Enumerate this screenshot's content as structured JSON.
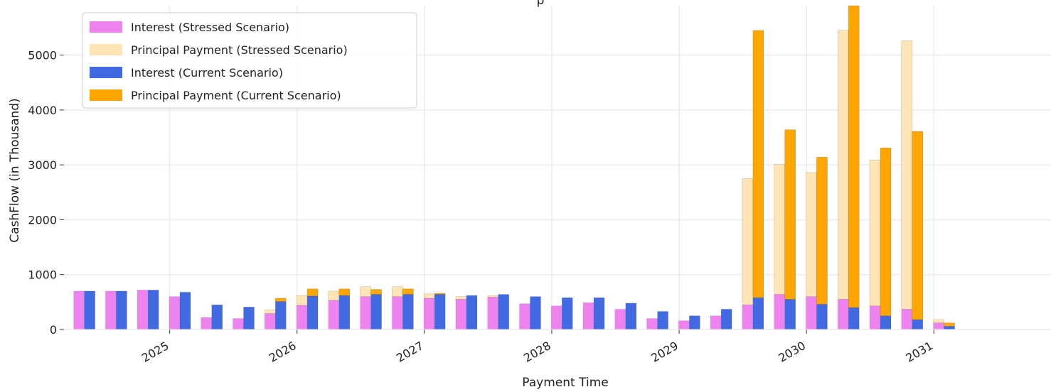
{
  "chart_data": {
    "type": "bar",
    "title": "p",
    "xlabel": "Payment Time",
    "ylabel": "CashFlow (in Thousand)",
    "ylim": [
      0,
      5900
    ],
    "y_ticks": [
      0,
      1000,
      2000,
      3000,
      4000,
      5000
    ],
    "y_tick_labels": [
      "0",
      "1000",
      "2000",
      "3000",
      "4000",
      "5000"
    ],
    "x_ticks": [
      2025,
      2026,
      2027,
      2028,
      2029,
      2030,
      2031
    ],
    "x_tick_labels": [
      "2025",
      "2026",
      "2027",
      "2028",
      "2029",
      "2030",
      "2031"
    ],
    "x_range": [
      2024.17,
      2031.92
    ],
    "grid": true,
    "legend_position": "top-left",
    "colors": {
      "interest_stressed": "#ee82ee",
      "principal_stressed": "#ffe4b5",
      "interest_current": "#4169e1",
      "principal_current": "#ffa500"
    },
    "groups": [
      {
        "name": "Stressed Scenario",
        "interest": "Interest (Stressed Scenario)",
        "principal": "Principal Payment (Stressed Scenario)"
      },
      {
        "name": "Current Scenario",
        "interest": "Interest (Current Scenario)",
        "principal": "Principal Payment (Current Scenario)"
      }
    ],
    "legend": [
      {
        "label": "Interest (Stressed Scenario)",
        "color": "#ee82ee"
      },
      {
        "label": "Principal Payment (Stressed Scenario)",
        "color": "#ffe4b5"
      },
      {
        "label": "Interest (Current Scenario)",
        "color": "#4169e1"
      },
      {
        "label": "Principal Payment (Current Scenario)",
        "color": "#ffa500"
      }
    ],
    "x": [
      2024.33,
      2024.58,
      2024.83,
      2025.08,
      2025.33,
      2025.58,
      2025.83,
      2026.08,
      2026.33,
      2026.58,
      2026.83,
      2027.08,
      2027.33,
      2027.58,
      2027.83,
      2028.08,
      2028.33,
      2028.58,
      2028.83,
      2029.08,
      2029.33,
      2029.58,
      2029.83,
      2030.08,
      2030.33,
      2030.58,
      2030.83,
      2031.08
    ],
    "series": [
      {
        "name": "Interest (Stressed Scenario)",
        "stack": "Stressed Scenario",
        "values": [
          700,
          700,
          720,
          600,
          220,
          200,
          290,
          440,
          530,
          600,
          600,
          570,
          550,
          590,
          470,
          430,
          490,
          370,
          200,
          160,
          250,
          450,
          640,
          600,
          550,
          430,
          370,
          120
        ]
      },
      {
        "name": "Principal Payment (Stressed Scenario)",
        "stack": "Stressed Scenario",
        "values": [
          0,
          0,
          0,
          0,
          0,
          0,
          70,
          180,
          170,
          180,
          180,
          80,
          50,
          30,
          0,
          0,
          0,
          0,
          0,
          0,
          0,
          2300,
          2370,
          2260,
          4900,
          2660,
          4890,
          60
        ]
      },
      {
        "name": "Interest (Current Scenario)",
        "stack": "Current Scenario",
        "values": [
          700,
          700,
          720,
          680,
          450,
          410,
          510,
          610,
          620,
          640,
          640,
          640,
          620,
          640,
          600,
          580,
          580,
          480,
          330,
          250,
          370,
          580,
          550,
          460,
          400,
          250,
          180,
          60
        ]
      },
      {
        "name": "Principal Payment (Current Scenario)",
        "stack": "Current Scenario",
        "values": [
          0,
          0,
          0,
          0,
          0,
          0,
          60,
          130,
          120,
          90,
          100,
          20,
          0,
          0,
          0,
          0,
          0,
          0,
          0,
          0,
          0,
          4870,
          3090,
          2680,
          5500,
          3060,
          3430,
          60
        ]
      }
    ]
  }
}
